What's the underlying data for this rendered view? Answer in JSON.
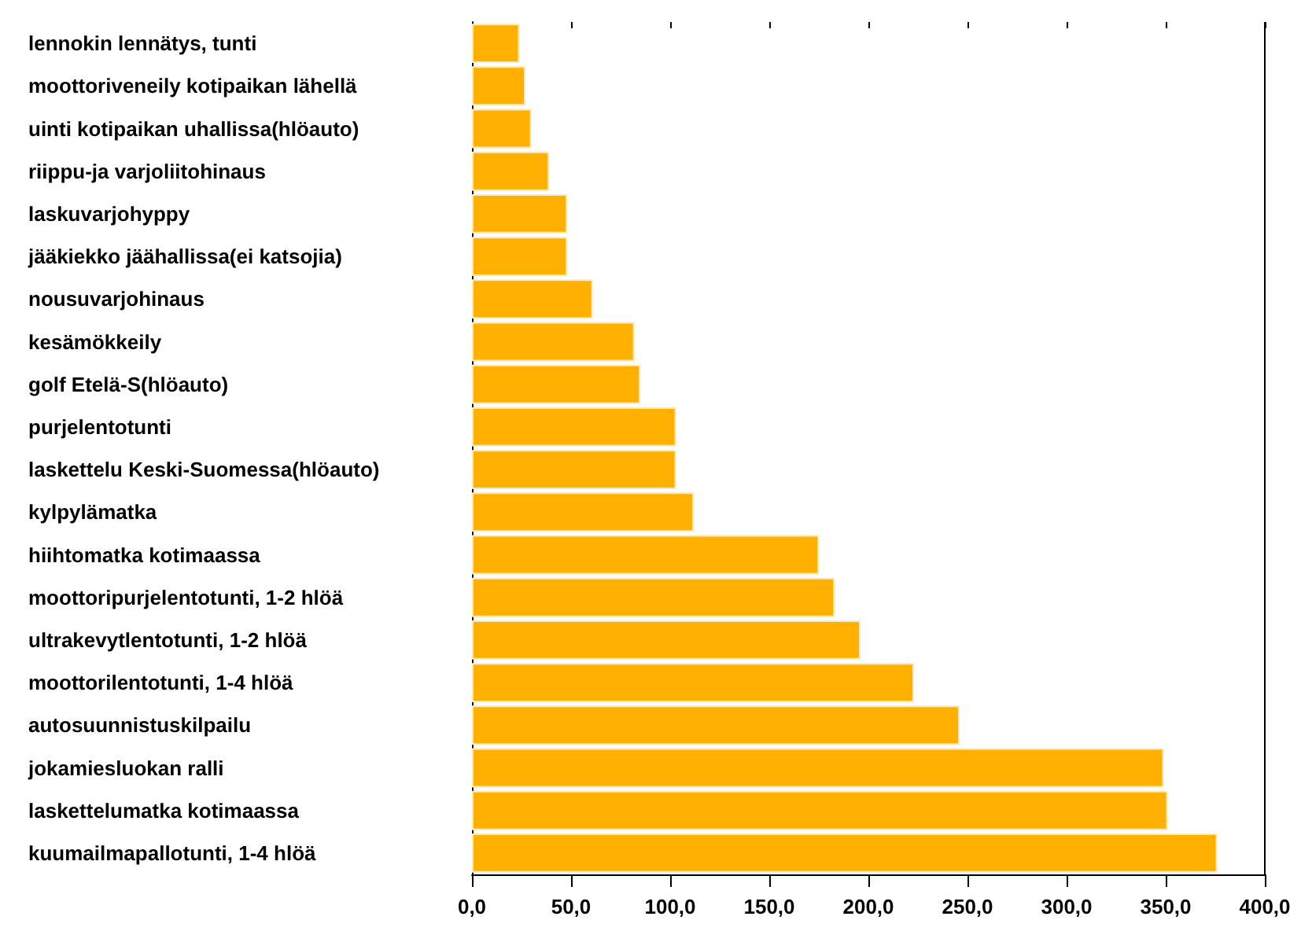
{
  "chart_data": {
    "type": "bar",
    "orientation": "horizontal",
    "categories": [
      "lennokin lennätys, tunti",
      "moottoriveneily kotipaikan lähellä",
      "uinti kotipaikan uhallissa(hlöauto)",
      "riippu-ja varjoliitohinaus",
      "laskuvarjohyppy",
      "jääkiekko jäähallissa(ei katsojia)",
      "nousuvarjohinaus",
      "kesämökkeily",
      "golf Etelä-S(hlöauto)",
      "purjelentotunti",
      "laskettelu Keski-Suomessa(hlöauto)",
      "kylpylämatka",
      "hiihtomatka kotimaassa",
      "moottoripurjelentotunti, 1-2 hlöä",
      "ultrakevytlentotunti, 1-2 hlöä",
      "moottorilentotunti, 1-4 hlöä",
      "autosuunnistuskilpailu",
      "jokamiesluokan ralli",
      "laskettelumatka kotimaassa",
      "kuumailmapallotunti, 1-4 hlöä"
    ],
    "values": [
      24,
      27,
      30,
      39,
      48,
      48,
      61,
      82,
      85,
      103,
      103,
      112,
      175,
      183,
      196,
      223,
      246,
      349,
      351,
      376
    ],
    "color": "#ffb000",
    "xlim": [
      0,
      400
    ],
    "xticks": [
      {
        "value": 0,
        "label": "0,0"
      },
      {
        "value": 50,
        "label": "50,0"
      },
      {
        "value": 100,
        "label": "100,0"
      },
      {
        "value": 150,
        "label": "150,0"
      },
      {
        "value": 200,
        "label": "200,0"
      },
      {
        "value": 250,
        "label": "250,0"
      },
      {
        "value": 300,
        "label": "300,0"
      },
      {
        "value": 350,
        "label": "350,0"
      },
      {
        "value": 400,
        "label": "400,0"
      }
    ],
    "grid": false
  }
}
